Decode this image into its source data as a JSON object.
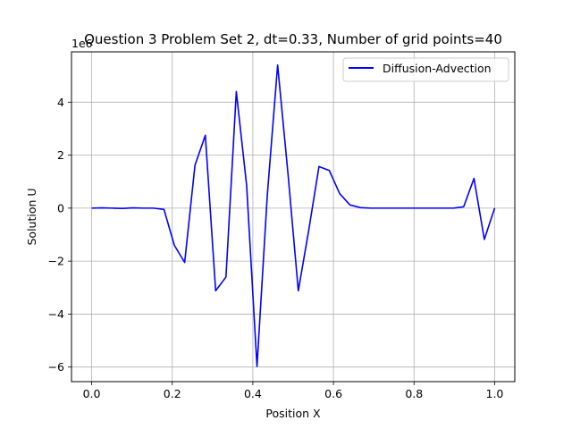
{
  "chart_data": {
    "type": "line",
    "title": "Question 3 Problem Set 2, dt=0.33, Number of grid points=40",
    "xlabel": "Position X",
    "ylabel": "Solution U",
    "y_offset_label": "1e6",
    "xlim": [
      -0.05,
      1.05
    ],
    "ylim": [
      -6.55,
      5.9
    ],
    "x_ticks": [
      0.0,
      0.2,
      0.4,
      0.6,
      0.8,
      1.0
    ],
    "x_tick_labels": [
      "0.0",
      "0.2",
      "0.4",
      "0.6",
      "0.8",
      "1.0"
    ],
    "y_ticks": [
      -6,
      -4,
      -2,
      0,
      2,
      4
    ],
    "y_tick_labels": [
      "−6",
      "−4",
      "−2",
      "0",
      "2",
      "4"
    ],
    "grid": true,
    "legend_position": "top-right",
    "series": [
      {
        "name": "Diffusion-Advection",
        "color": "#0000ff",
        "x": [
          0.0,
          0.0256,
          0.0513,
          0.0769,
          0.1026,
          0.1282,
          0.1538,
          0.1795,
          0.2051,
          0.2308,
          0.2564,
          0.2821,
          0.3077,
          0.3333,
          0.359,
          0.3846,
          0.4103,
          0.4359,
          0.4615,
          0.4872,
          0.5128,
          0.5385,
          0.5641,
          0.5897,
          0.6154,
          0.641,
          0.6667,
          0.6923,
          0.7179,
          0.7436,
          0.7692,
          0.7949,
          0.8205,
          0.8462,
          0.8718,
          0.8974,
          0.9231,
          0.9487,
          0.9744,
          1.0
        ],
        "values": [
          0.0,
          0.01,
          0.0,
          -0.01,
          0.01,
          0.0,
          0.0,
          -0.05,
          -1.4,
          -2.05,
          1.62,
          2.75,
          -3.12,
          -2.6,
          4.4,
          0.85,
          -5.98,
          0.5,
          5.4,
          1.3,
          -3.12,
          -0.85,
          1.57,
          1.42,
          0.55,
          0.12,
          0.02,
          0.0,
          0.0,
          0.0,
          0.0,
          0.0,
          0.0,
          0.0,
          0.0,
          0.0,
          0.05,
          1.12,
          -1.18,
          0.0
        ]
      }
    ]
  }
}
